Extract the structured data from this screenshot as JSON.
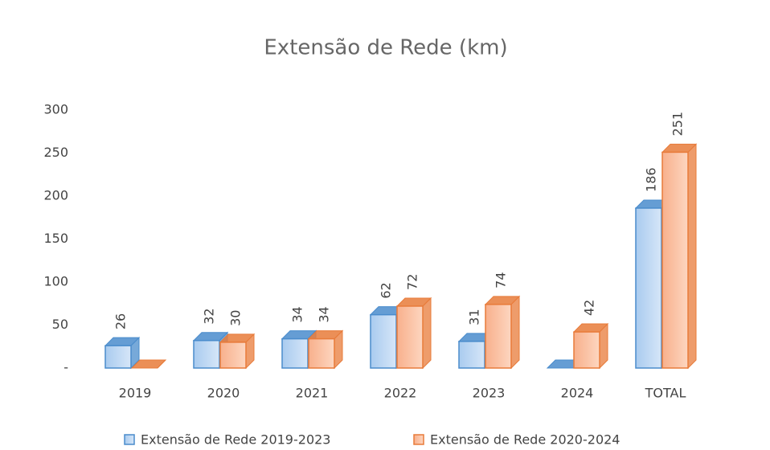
{
  "chart_data": {
    "type": "bar3d",
    "title": "Extensão de Rede (km)",
    "categories": [
      "2019",
      "2020",
      "2021",
      "2022",
      "2023",
      "2024",
      "TOTAL"
    ],
    "series": [
      {
        "name": "Extensão de Rede 2019-2023",
        "color": "#4a8ccc",
        "values": [
          26,
          32,
          34,
          62,
          31,
          0,
          186
        ],
        "value_labels": [
          "26",
          "32",
          "34",
          "62",
          "31",
          null,
          "186"
        ]
      },
      {
        "name": "Extensão de Rede 2020-2024",
        "color": "#e87b3a",
        "values": [
          0,
          30,
          34,
          72,
          74,
          42,
          251
        ],
        "value_labels": [
          null,
          "30",
          "34",
          "72",
          "74",
          "42",
          "251"
        ]
      }
    ],
    "ylim": [
      0,
      300
    ],
    "yticks": [
      {
        "value": 0,
        "label": "-"
      },
      50,
      100,
      150,
      200,
      250,
      300
    ],
    "grid": false,
    "legend": "bottom"
  }
}
